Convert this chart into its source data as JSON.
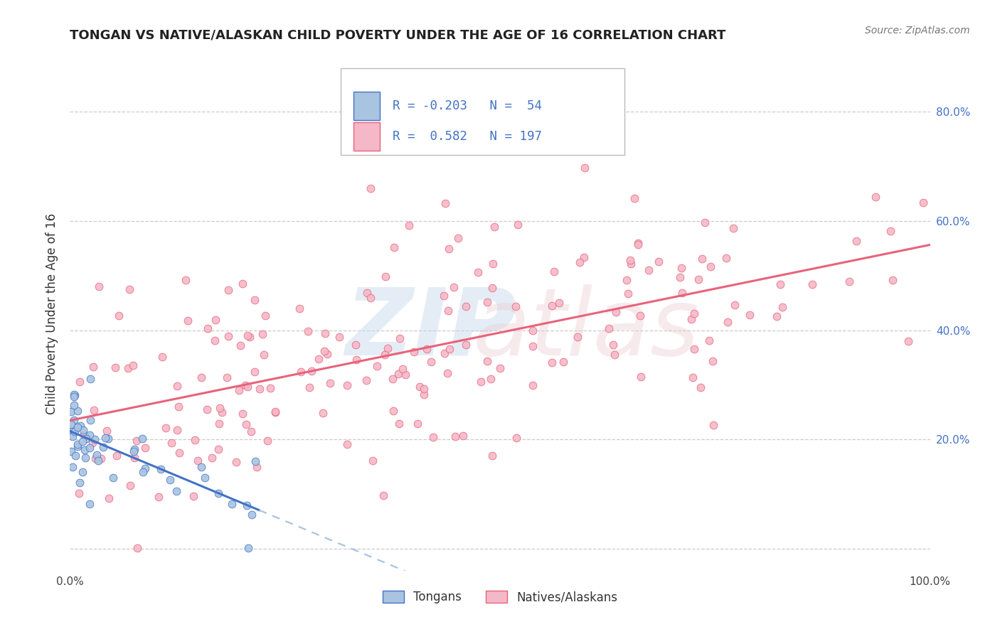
{
  "title": "TONGAN VS NATIVE/ALASKAN CHILD POVERTY UNDER THE AGE OF 16 CORRELATION CHART",
  "source": "Source: ZipAtlas.com",
  "ylabel": "Child Poverty Under the Age of 16",
  "xlim": [
    0.0,
    1.0
  ],
  "ylim": [
    -0.04,
    0.9
  ],
  "tongans_R": "-0.203",
  "tongans_N": "54",
  "natives_R": "0.582",
  "natives_N": "197",
  "scatter_tongans_color": "#a8c4e0",
  "scatter_natives_color": "#f4b8c8",
  "line_tongans_color": "#4472c4",
  "line_natives_color": "#e8637a",
  "line_tongans_dashed_color": "#a8c4e0",
  "watermark_color": "#c8d8e8",
  "background_color": "#ffffff",
  "grid_color": "#c0c0c0",
  "legend_color_tongans": "#a8c4e0",
  "legend_color_natives": "#f4b8c8",
  "legend_text_color": "#4472c4"
}
